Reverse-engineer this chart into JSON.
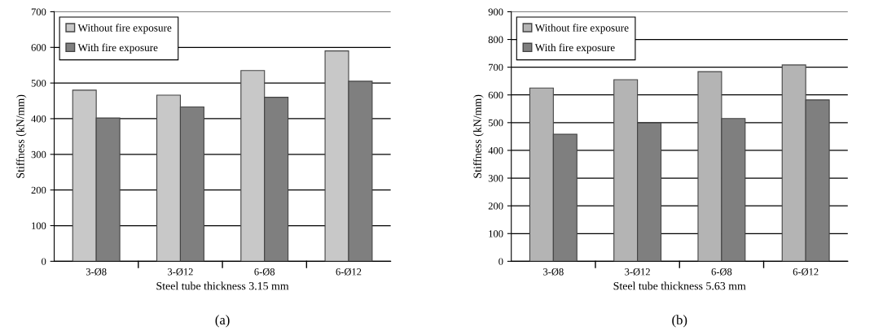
{
  "chart_data": [
    {
      "type": "bar",
      "categories": [
        "3-Ø8",
        "3-Ø12",
        "6-Ø8",
        "6-Ø12"
      ],
      "xlabel": "Steel tube thickness 3.15 mm",
      "ylabel": "Stiffness (kN/mm)",
      "ylim": [
        0,
        700
      ],
      "yticks": [
        0,
        100,
        200,
        300,
        400,
        500,
        600,
        700
      ],
      "grid": "y",
      "legend": "top left",
      "annotations": [
        "(a)"
      ],
      "series": [
        {
          "name": "Without fire exposure",
          "color": "#c8c8c8",
          "values": [
            480,
            466,
            535,
            590
          ]
        },
        {
          "name": "With fire exposure",
          "color": "#7f7f7f",
          "values": [
            402,
            433,
            460,
            505
          ]
        }
      ]
    },
    {
      "type": "bar",
      "categories": [
        "3-Ø8",
        "3-Ø12",
        "6-Ø8",
        "6-Ø12"
      ],
      "xlabel": "Steel tube thickness 5.63 mm",
      "ylabel": "Stiffness (kN/mm)",
      "ylim": [
        0,
        900
      ],
      "yticks": [
        0,
        100,
        200,
        300,
        400,
        500,
        600,
        700,
        800,
        900
      ],
      "grid": "y",
      "legend": "top left",
      "annotations": [
        "(b)"
      ],
      "series": [
        {
          "name": "Without fire exposure",
          "color": "#b4b4b4",
          "values": [
            625,
            655,
            684,
            708
          ]
        },
        {
          "name": "With fire exposure",
          "color": "#7f7f7f",
          "values": [
            458,
            499,
            515,
            582
          ]
        }
      ]
    }
  ]
}
